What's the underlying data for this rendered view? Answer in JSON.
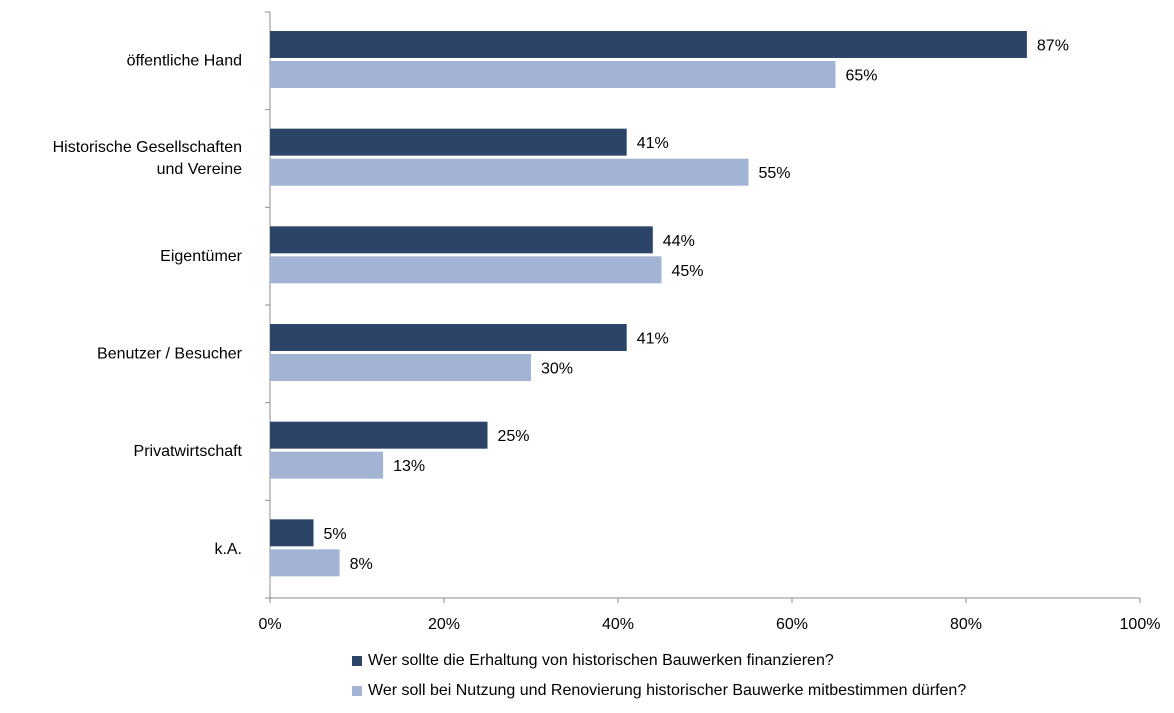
{
  "chart_data": {
    "type": "bar",
    "orientation": "horizontal",
    "categories": [
      [
        "öffentliche Hand"
      ],
      [
        "Historische Gesellschaften",
        "und Vereine"
      ],
      [
        "Eigentümer"
      ],
      [
        "Benutzer / Besucher"
      ],
      [
        "Privatwirtschaft"
      ],
      [
        "k.A."
      ]
    ],
    "series": [
      {
        "name": "Wer sollte die Erhaltung von historischen Bauwerken finanzieren?",
        "color": "#2b4468",
        "values": [
          87,
          41,
          44,
          41,
          25,
          5
        ]
      },
      {
        "name": "Wer soll bei Nutzung und Renovierung historischer Bauwerke mitbestimmen dürfen?",
        "color": "#a3b3d3",
        "values": [
          65,
          55,
          45,
          30,
          13,
          8
        ]
      }
    ],
    "xlim": [
      0,
      100
    ],
    "x_ticks": [
      "0%",
      "20%",
      "40%",
      "60%",
      "80%",
      "100%"
    ],
    "value_suffix": "%",
    "grid": false,
    "legend_position": "bottom"
  }
}
